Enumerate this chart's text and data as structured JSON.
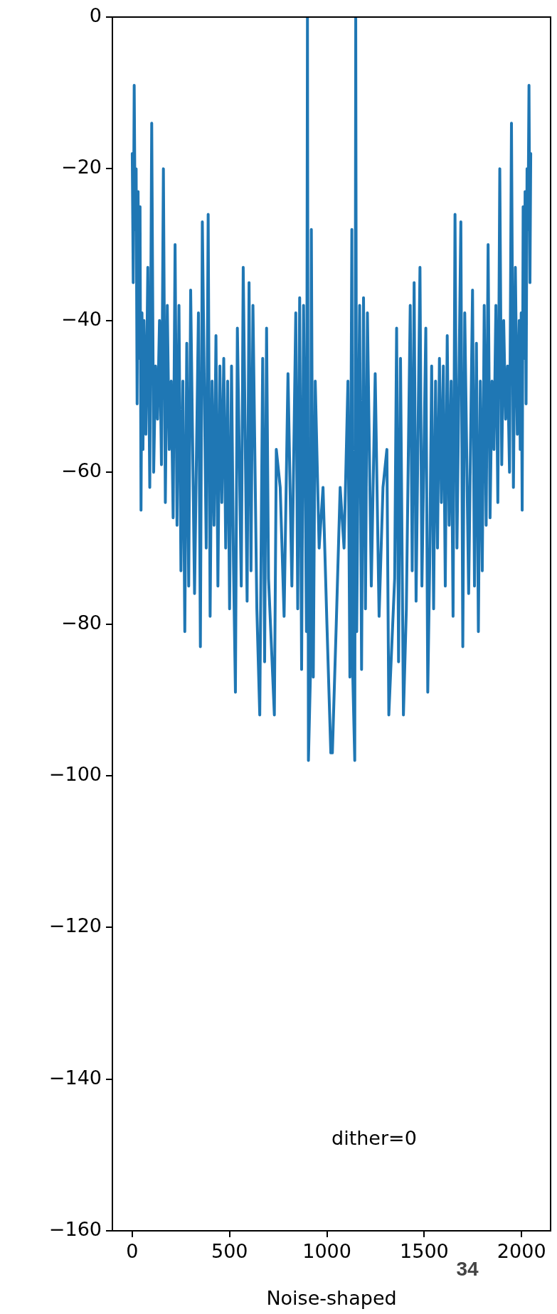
{
  "chart_data": {
    "type": "line",
    "xlabel": "Noise-shaped",
    "annotations": [
      "dither=0",
      "34"
    ],
    "xlim": [
      -102,
      2149
    ],
    "xticks": [
      0,
      500,
      1000,
      1500,
      2000
    ],
    "ylim": [
      -160,
      0
    ],
    "yticks": [
      -160,
      -140,
      -120,
      -100,
      -80,
      -60,
      -40,
      -20,
      0
    ],
    "marker": "none",
    "line_style": "solid",
    "series": [
      {
        "color": "#1f77b4",
        "x": [
          0,
          5,
          10,
          15,
          20,
          25,
          30,
          35,
          40,
          45,
          50,
          55,
          60,
          70,
          80,
          90,
          100,
          110,
          120,
          130,
          140,
          150,
          160,
          170,
          180,
          190,
          200,
          210,
          220,
          230,
          240,
          250,
          260,
          270,
          280,
          290,
          300,
          320,
          340,
          350,
          360,
          380,
          390,
          400,
          410,
          420,
          430,
          440,
          450,
          460,
          470,
          480,
          490,
          500,
          510,
          520,
          530,
          540,
          560,
          570,
          590,
          600,
          610,
          620,
          640,
          655,
          670,
          680,
          690,
          700,
          710,
          730,
          740,
          760,
          780,
          800,
          820,
          840,
          850,
          860,
          870,
          880,
          890,
          895,
          900,
          905,
          915,
          920,
          930,
          940,
          960,
          980,
          1000,
          1020,
          1028,
          1048,
          1068,
          1088,
          1108,
          1118,
          1128,
          1133,
          1143,
          1148,
          1153,
          1158,
          1168,
          1178,
          1188,
          1198,
          1208,
          1228,
          1248,
          1268,
          1288,
          1308,
          1318,
          1338,
          1348,
          1358,
          1368,
          1378,
          1393,
          1408,
          1428,
          1438,
          1448,
          1458,
          1478,
          1488,
          1508,
          1518,
          1528,
          1538,
          1548,
          1558,
          1568,
          1578,
          1588,
          1598,
          1608,
          1618,
          1628,
          1638,
          1648,
          1658,
          1668,
          1688,
          1698,
          1708,
          1728,
          1748,
          1758,
          1768,
          1778,
          1788,
          1798,
          1808,
          1818,
          1828,
          1838,
          1848,
          1858,
          1868,
          1878,
          1888,
          1898,
          1908,
          1918,
          1928,
          1938,
          1948,
          1958,
          1968,
          1978,
          1988,
          1993,
          1998,
          2003,
          2008,
          2013,
          2018,
          2023,
          2028,
          2033,
          2038,
          2043,
          2047
        ],
        "values": [
          -18,
          -35,
          -9,
          -28,
          -20,
          -51,
          -23,
          -45,
          -25,
          -65,
          -39,
          -57,
          -40,
          -55,
          -33,
          -62,
          -14,
          -60,
          -46,
          -53,
          -40,
          -59,
          -20,
          -64,
          -38,
          -57,
          -48,
          -66,
          -30,
          -67,
          -38,
          -73,
          -48,
          -81,
          -43,
          -75,
          -36,
          -76,
          -39,
          -83,
          -27,
          -70,
          -26,
          -79,
          -48,
          -67,
          -42,
          -75,
          -46,
          -64,
          -45,
          -70,
          -48,
          -78,
          -46,
          -72,
          -89,
          -41,
          -75,
          -33,
          -77,
          -35,
          -73,
          -38,
          -78,
          -92,
          -45,
          -85,
          -41,
          -74,
          -80,
          -92,
          -57,
          -62,
          -79,
          -47,
          -75,
          -39,
          -78,
          -37,
          -86,
          -38,
          -65,
          -81,
          0,
          -98,
          -87,
          -28,
          -87,
          -48,
          -70,
          -62,
          -80,
          -97,
          -97,
          -80,
          -62,
          -70,
          -48,
          -87,
          -28,
          -87,
          -98,
          0,
          -81,
          -65,
          -38,
          -86,
          -37,
          -78,
          -39,
          -75,
          -47,
          -79,
          -62,
          -57,
          -92,
          -80,
          -74,
          -41,
          -85,
          -45,
          -92,
          -78,
          -38,
          -73,
          -35,
          -77,
          -33,
          -75,
          -41,
          -89,
          -72,
          -46,
          -78,
          -48,
          -70,
          -45,
          -64,
          -46,
          -75,
          -42,
          -67,
          -48,
          -79,
          -26,
          -70,
          -27,
          -83,
          -39,
          -76,
          -36,
          -75,
          -43,
          -81,
          -48,
          -73,
          -38,
          -67,
          -30,
          -66,
          -48,
          -57,
          -38,
          -64,
          -20,
          -59,
          -40,
          -53,
          -46,
          -60,
          -14,
          -62,
          -33,
          -55,
          -40,
          -57,
          -39,
          -65,
          -25,
          -45,
          -23,
          -51,
          -20,
          -28,
          -9,
          -35,
          -18
        ]
      }
    ]
  }
}
